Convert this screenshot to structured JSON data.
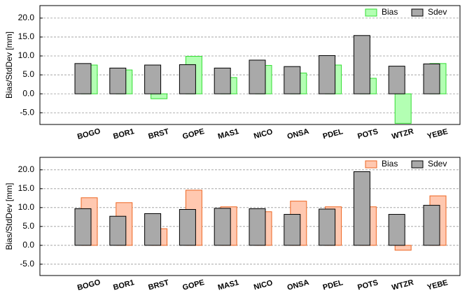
{
  "chart_data": [
    {
      "type": "bar",
      "ylabel": "Bias/StdDev [mm]",
      "categories": [
        "BOGO",
        "BOR1",
        "BRST",
        "GOPE",
        "MAS1",
        "NICO",
        "ONSA",
        "PDEL",
        "POTS",
        "WTZR",
        "YEBE"
      ],
      "series": [
        {
          "name": "Bias",
          "color": "#b3ffb3",
          "edgecolor": "#33dd33",
          "values": [
            7.6,
            6.3,
            -1.3,
            9.9,
            4.3,
            7.5,
            5.5,
            7.6,
            4.1,
            -7.8,
            8.0
          ]
        },
        {
          "name": "Sdev",
          "color": "#a9a9a9",
          "edgecolor": "#000000",
          "values": [
            8.0,
            6.8,
            7.6,
            7.7,
            6.8,
            8.9,
            7.2,
            10.1,
            15.4,
            7.3,
            7.9
          ]
        }
      ],
      "ylim": [
        -8.1,
        23.3
      ],
      "yticks": [
        {
          "value": -5,
          "label": "-5.0"
        },
        {
          "value": 0,
          "label": "0.0"
        },
        {
          "value": 5,
          "label": "5.0"
        },
        {
          "value": 10,
          "label": "10.0"
        },
        {
          "value": 15,
          "label": "15.0"
        },
        {
          "value": 20,
          "label": "20.0"
        }
      ],
      "grid": true,
      "legend": "upper right"
    },
    {
      "type": "bar",
      "ylabel": "Bias/StdDev [mm]",
      "categories": [
        "BOGO",
        "BOR1",
        "BRST",
        "GOPE",
        "MAS1",
        "NICO",
        "ONSA",
        "PDEL",
        "POTS",
        "WTZR",
        "YEBE"
      ],
      "series": [
        {
          "name": "Bias",
          "color": "#ffc8b0",
          "edgecolor": "#ee6622",
          "values": [
            12.6,
            11.3,
            4.4,
            14.6,
            10.2,
            8.9,
            11.7,
            10.2,
            10.2,
            -1.3,
            13.1
          ]
        },
        {
          "name": "Sdev",
          "color": "#a9a9a9",
          "edgecolor": "#000000",
          "values": [
            9.7,
            7.7,
            8.4,
            9.5,
            9.8,
            9.7,
            8.2,
            9.6,
            19.5,
            8.2,
            10.6
          ]
        }
      ],
      "ylim": [
        -8.0,
        23.3
      ],
      "yticks": [
        {
          "value": -5,
          "label": "-5.0"
        },
        {
          "value": 0,
          "label": "0.0"
        },
        {
          "value": 5,
          "label": "5.0"
        },
        {
          "value": 10,
          "label": "10.0"
        },
        {
          "value": 15,
          "label": "15.0"
        },
        {
          "value": 20,
          "label": "20.0"
        }
      ],
      "grid": true,
      "legend": "upper right"
    }
  ]
}
